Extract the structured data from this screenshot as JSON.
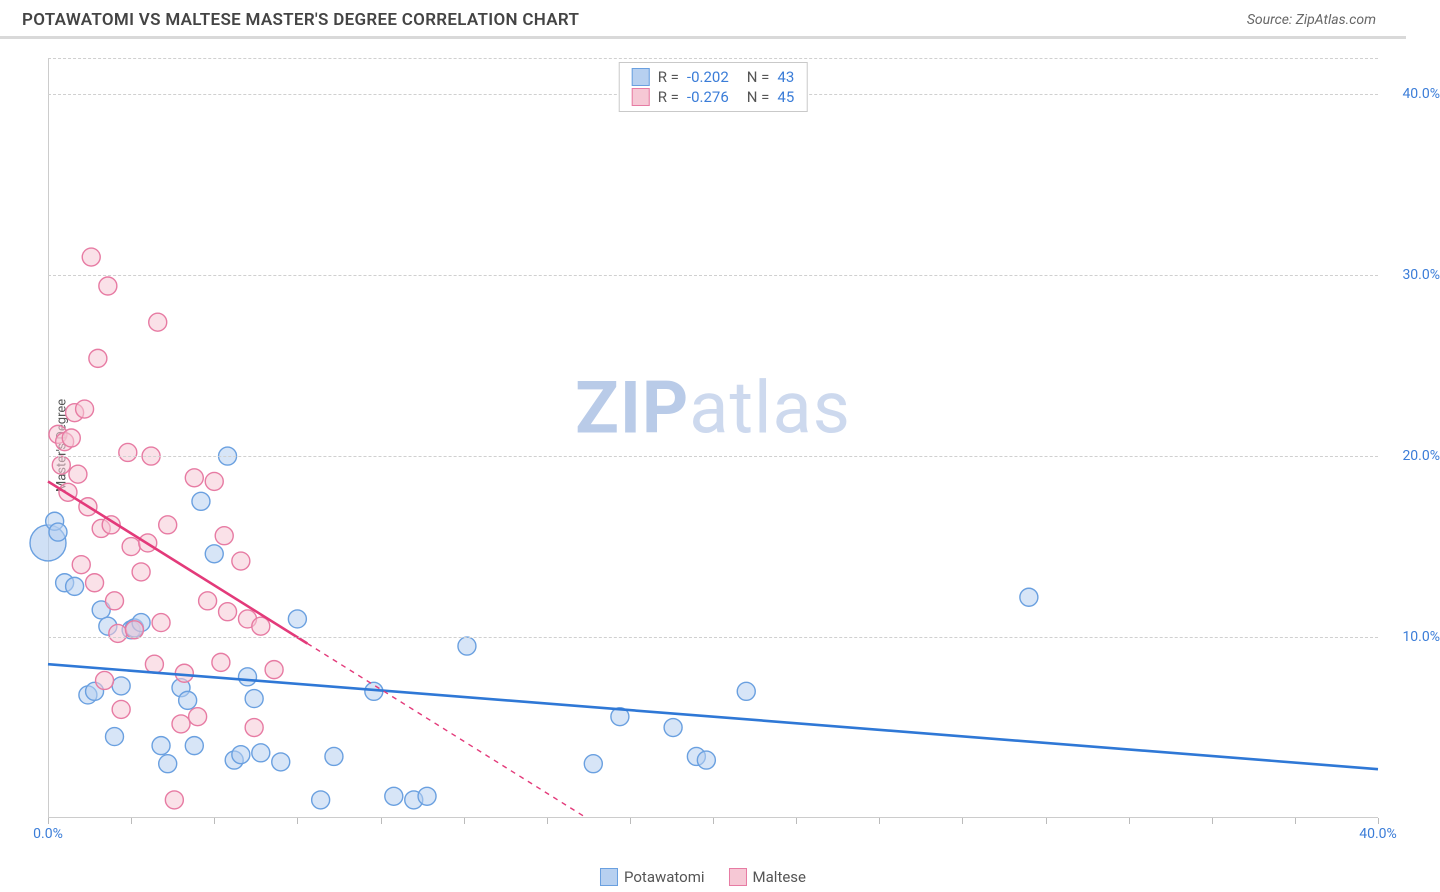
{
  "title": "POTAWATOMI VS MALTESE MASTER'S DEGREE CORRELATION CHART",
  "source": "Source: ZipAtlas.com",
  "watermark_bold": "ZIP",
  "watermark_light": "atlas",
  "y_axis_label": "Master's Degree",
  "chart": {
    "type": "scatter",
    "xlim": [
      0,
      40
    ],
    "ylim": [
      0,
      42
    ],
    "x_tick_interval_minor": 2.5,
    "x_tick_labels": [
      {
        "v": 0,
        "label": "0.0%"
      },
      {
        "v": 40,
        "label": "40.0%"
      }
    ],
    "y_grid": [
      10,
      20,
      30,
      40,
      42
    ],
    "y_tick_labels": [
      {
        "v": 10,
        "label": "10.0%"
      },
      {
        "v": 20,
        "label": "20.0%"
      },
      {
        "v": 30,
        "label": "30.0%"
      },
      {
        "v": 40,
        "label": "40.0%"
      }
    ],
    "background_color": "#ffffff",
    "grid_color": "#d0d0d0",
    "axis_color": "#cccccc",
    "label_color": "#3b7dd8",
    "marker_radius": 9,
    "marker_stroke_width": 1.4,
    "line_width": 2.6
  },
  "series": [
    {
      "name": "Potawatomi",
      "color_fill": "#b7d0f0",
      "color_stroke": "#6aa0e0",
      "line_color": "#2f78d6",
      "R": "-0.202",
      "N": "43",
      "trend": {
        "x1": 0,
        "y1": 8.5,
        "x2": 40,
        "y2": 2.7,
        "solid_until_x": 40
      },
      "points": [
        [
          0.2,
          16.4
        ],
        [
          0.3,
          15.8
        ],
        [
          0.5,
          13.0
        ],
        [
          0.8,
          12.8
        ],
        [
          1.2,
          6.8
        ],
        [
          1.4,
          7.0
        ],
        [
          1.6,
          11.5
        ],
        [
          1.8,
          10.6
        ],
        [
          2.0,
          4.5
        ],
        [
          2.2,
          7.3
        ],
        [
          2.5,
          10.4
        ],
        [
          2.6,
          10.5
        ],
        [
          2.8,
          10.8
        ],
        [
          3.4,
          4.0
        ],
        [
          3.6,
          3.0
        ],
        [
          4.0,
          7.2
        ],
        [
          4.2,
          6.5
        ],
        [
          4.4,
          4.0
        ],
        [
          4.6,
          17.5
        ],
        [
          5.0,
          14.6
        ],
        [
          5.4,
          20.0
        ],
        [
          5.6,
          3.2
        ],
        [
          5.8,
          3.5
        ],
        [
          6.0,
          7.8
        ],
        [
          6.2,
          6.6
        ],
        [
          6.4,
          3.6
        ],
        [
          7.0,
          3.1
        ],
        [
          7.5,
          11.0
        ],
        [
          8.2,
          1.0
        ],
        [
          8.6,
          3.4
        ],
        [
          9.8,
          7.0
        ],
        [
          10.4,
          1.2
        ],
        [
          11.0,
          1.0
        ],
        [
          11.4,
          1.2
        ],
        [
          12.6,
          9.5
        ],
        [
          16.4,
          3.0
        ],
        [
          17.2,
          5.6
        ],
        [
          18.8,
          5.0
        ],
        [
          19.5,
          3.4
        ],
        [
          19.8,
          3.2
        ],
        [
          21.0,
          7.0
        ],
        [
          29.5,
          12.2
        ]
      ],
      "big_point": [
        0.0,
        15.2
      ]
    },
    {
      "name": "Maltese",
      "color_fill": "#f6c8d5",
      "color_stroke": "#e77ba3",
      "line_color": "#e33a7a",
      "R": "-0.276",
      "N": "45",
      "trend": {
        "x1": 0,
        "y1": 18.6,
        "x2": 16.2,
        "y2": 0,
        "solid_until_x": 7.8
      },
      "points": [
        [
          0.3,
          21.2
        ],
        [
          0.4,
          19.5
        ],
        [
          0.5,
          20.8
        ],
        [
          0.6,
          18.0
        ],
        [
          0.7,
          21.0
        ],
        [
          0.8,
          22.4
        ],
        [
          0.9,
          19.0
        ],
        [
          1.0,
          14.0
        ],
        [
          1.1,
          22.6
        ],
        [
          1.2,
          17.2
        ],
        [
          1.3,
          31.0
        ],
        [
          1.4,
          13.0
        ],
        [
          1.5,
          25.4
        ],
        [
          1.6,
          16.0
        ],
        [
          1.7,
          7.6
        ],
        [
          1.8,
          29.4
        ],
        [
          1.9,
          16.2
        ],
        [
          2.0,
          12.0
        ],
        [
          2.1,
          10.2
        ],
        [
          2.2,
          6.0
        ],
        [
          2.4,
          20.2
        ],
        [
          2.5,
          15.0
        ],
        [
          2.6,
          10.4
        ],
        [
          2.8,
          13.6
        ],
        [
          3.0,
          15.2
        ],
        [
          3.1,
          20.0
        ],
        [
          3.2,
          8.5
        ],
        [
          3.3,
          27.4
        ],
        [
          3.4,
          10.8
        ],
        [
          3.6,
          16.2
        ],
        [
          3.8,
          1.0
        ],
        [
          4.0,
          5.2
        ],
        [
          4.1,
          8.0
        ],
        [
          4.4,
          18.8
        ],
        [
          4.5,
          5.6
        ],
        [
          4.8,
          12.0
        ],
        [
          5.0,
          18.6
        ],
        [
          5.2,
          8.6
        ],
        [
          5.3,
          15.6
        ],
        [
          5.4,
          11.4
        ],
        [
          5.8,
          14.2
        ],
        [
          6.0,
          11.0
        ],
        [
          6.2,
          5.0
        ],
        [
          6.4,
          10.6
        ],
        [
          6.8,
          8.2
        ]
      ]
    }
  ],
  "legend_bottom": [
    {
      "label": "Potawatomi",
      "fill": "#b7d0f0",
      "stroke": "#6aa0e0"
    },
    {
      "label": "Maltese",
      "fill": "#f6c8d5",
      "stroke": "#e77ba3"
    }
  ]
}
